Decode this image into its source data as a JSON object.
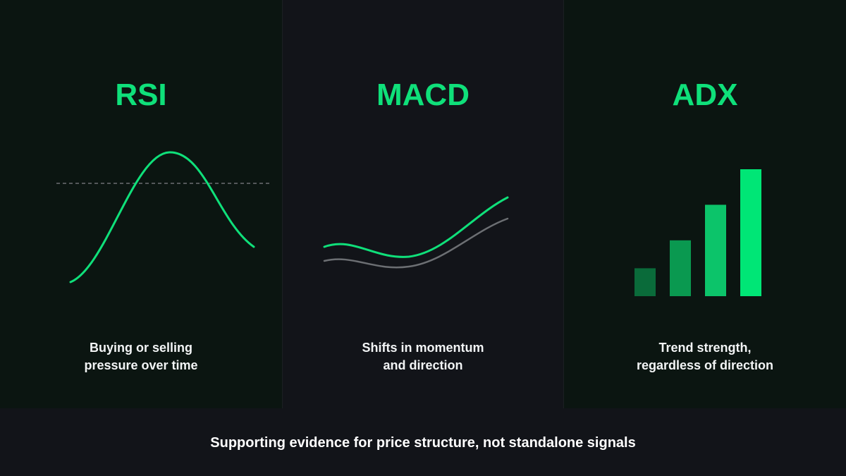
{
  "panels": [
    {
      "title": "RSI",
      "desc_line1": "Buying or selling",
      "desc_line2": "pressure over time",
      "icon": "rsi-oscillator-curve"
    },
    {
      "title": "MACD",
      "desc_line1": "Shifts in momentum",
      "desc_line2": "and direction",
      "icon": "macd-crossing-lines"
    },
    {
      "title": "ADX",
      "desc_line1": "Trend strength,",
      "desc_line2": "regardless of direction",
      "icon": "adx-rising-bars"
    }
  ],
  "adx_bars": {
    "levels": [
      0.22,
      0.44,
      0.72,
      1.0
    ],
    "colors": [
      "#0a6b3a",
      "#0a9950",
      "#0cc46a",
      "#00e676"
    ]
  },
  "colors": {
    "accent": "#0fe07a",
    "muted_line": "#6c6f73",
    "text": "#f2f4f5"
  },
  "footer": {
    "text": "Supporting evidence for price structure, not standalone signals"
  }
}
